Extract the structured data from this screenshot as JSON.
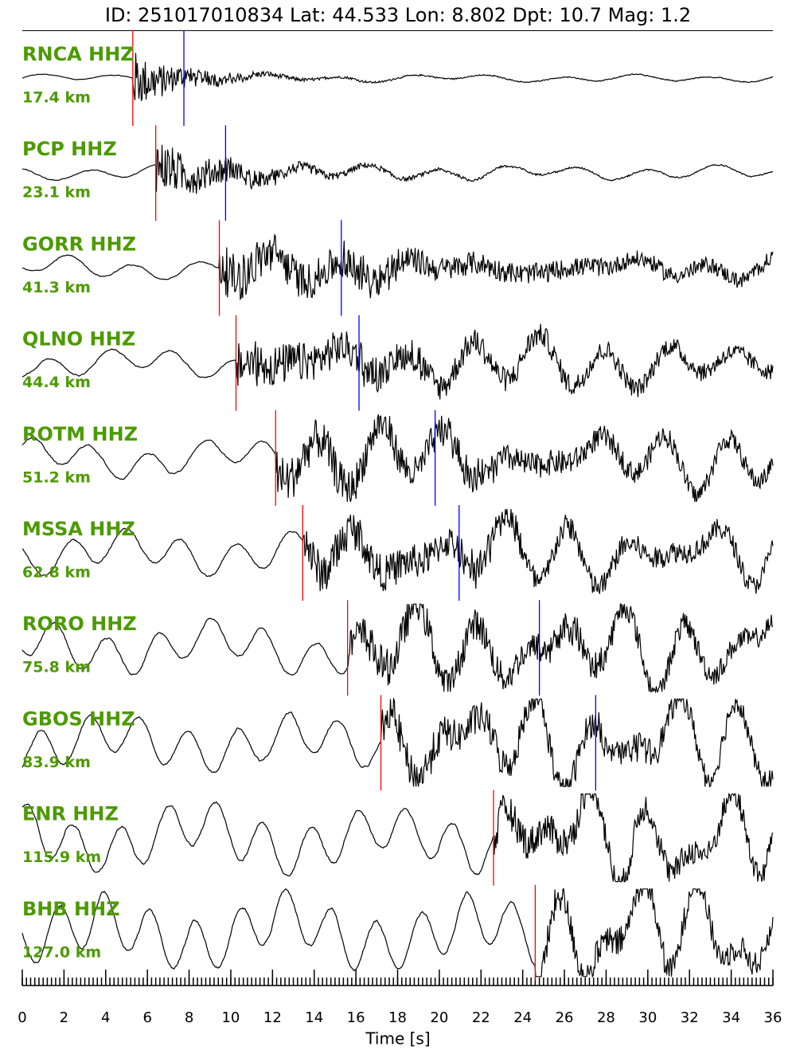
{
  "chart_data": {
    "type": "seismogram",
    "title": "ID: 251017010834 Lat:  44.533 Lon:   8.802 Dpt:    10.7 Mag:   1.2",
    "xlabel": "Time [s]",
    "xlim": [
      0,
      36
    ],
    "xticks": [
      0,
      2,
      4,
      6,
      8,
      10,
      12,
      14,
      16,
      18,
      20,
      22,
      24,
      26,
      28,
      30,
      32,
      34,
      36
    ],
    "xminor": 0.2,
    "label_color": "#4c9a00",
    "p_color": "#ff0000",
    "s_color": "#0000ff",
    "series": [
      {
        "name": "RNCA HHZ",
        "distance": "17.4 km",
        "p": 5.3,
        "s": 7.75
      },
      {
        "name": "PCP HHZ",
        "distance": "23.1 km",
        "p": 6.4,
        "s": 9.75
      },
      {
        "name": "GORR HHZ",
        "distance": "41.3 km",
        "p": 9.45,
        "s": 15.3
      },
      {
        "name": "QLNO HHZ",
        "distance": "44.4 km",
        "p": 10.25,
        "s": 16.15
      },
      {
        "name": "ROTM HHZ",
        "distance": "51.2 km",
        "p": 12.15,
        "s": 19.8
      },
      {
        "name": "MSSA HHZ",
        "distance": "62.8 km",
        "p": 13.45,
        "s": 20.95
      },
      {
        "name": "RORO HHZ",
        "distance": "75.8 km",
        "p": 15.6,
        "s": 24.8
      },
      {
        "name": "GBOS HHZ",
        "distance": "83.9 km",
        "p": 17.2,
        "s": 27.5
      },
      {
        "name": "ENR HHZ",
        "distance": "115.9 km",
        "p": 22.6,
        "s": null
      },
      {
        "name": "BHB HHZ",
        "distance": "127.0 km",
        "p": 24.6,
        "s": null
      }
    ]
  }
}
